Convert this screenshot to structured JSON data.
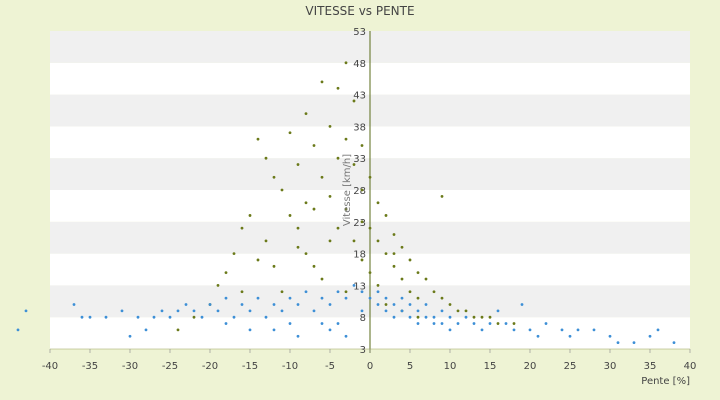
{
  "chart_data": {
    "type": "scatter",
    "title": "VITESSE vs PENTE",
    "xlabel": "Pente [%]",
    "ylabel": "Vitesse [km/h]",
    "xlim": [
      -40,
      40
    ],
    "ylim": [
      3,
      53
    ],
    "x_ticks": [
      -40,
      -35,
      -30,
      -25,
      -20,
      -15,
      -10,
      -5,
      0,
      5,
      10,
      15,
      20,
      25,
      30,
      35,
      40
    ],
    "y_ticks": [
      3,
      8,
      13,
      18,
      23,
      28,
      33,
      38,
      43,
      48,
      53
    ],
    "grid": "horizontal bands",
    "colors": {
      "background": "#eef3d4",
      "band_light": "#ffffff",
      "band_dark": "#f0f0f0",
      "axis": "#5a6b1a"
    },
    "series": [
      {
        "color": "#6b7a1a",
        "points": [
          [
            -18,
            15
          ],
          [
            -17,
            18
          ],
          [
            -16,
            22
          ],
          [
            -15,
            24
          ],
          [
            -14,
            36
          ],
          [
            -13,
            33
          ],
          [
            -12,
            30
          ],
          [
            -11,
            28
          ],
          [
            -10,
            37
          ],
          [
            -10,
            24
          ],
          [
            -9,
            22
          ],
          [
            -9,
            32
          ],
          [
            -8,
            40
          ],
          [
            -8,
            26
          ],
          [
            -7,
            25
          ],
          [
            -7,
            35
          ],
          [
            -6,
            30
          ],
          [
            -6,
            45
          ],
          [
            -5,
            27
          ],
          [
            -5,
            38
          ],
          [
            -4,
            44
          ],
          [
            -4,
            33
          ],
          [
            -4,
            22
          ],
          [
            -3,
            48
          ],
          [
            -3,
            36
          ],
          [
            -3,
            25
          ],
          [
            -2,
            42
          ],
          [
            -2,
            32
          ],
          [
            -2,
            20
          ],
          [
            -1,
            35
          ],
          [
            -1,
            28
          ],
          [
            -1,
            17
          ],
          [
            0,
            30
          ],
          [
            0,
            22
          ],
          [
            0,
            15
          ],
          [
            1,
            26
          ],
          [
            1,
            20
          ],
          [
            1,
            13
          ],
          [
            2,
            24
          ],
          [
            2,
            18
          ],
          [
            3,
            21
          ],
          [
            3,
            16
          ],
          [
            4,
            19
          ],
          [
            4,
            14
          ],
          [
            5,
            17
          ],
          [
            5,
            12
          ],
          [
            6,
            15
          ],
          [
            6,
            11
          ],
          [
            7,
            14
          ],
          [
            8,
            12
          ],
          [
            9,
            11
          ],
          [
            10,
            10
          ],
          [
            11,
            9
          ],
          [
            12,
            9
          ],
          [
            13,
            8
          ],
          [
            14,
            8
          ],
          [
            15,
            8
          ],
          [
            16,
            7
          ],
          [
            18,
            7
          ],
          [
            9,
            27
          ],
          [
            -20,
            10
          ],
          [
            -22,
            8
          ],
          [
            -24,
            6
          ],
          [
            -16,
            12
          ],
          [
            -12,
            16
          ],
          [
            -8,
            18
          ],
          [
            -6,
            14
          ],
          [
            -13,
            20
          ],
          [
            -19,
            13
          ],
          [
            -11,
            12
          ],
          [
            -7,
            16
          ],
          [
            -3,
            12
          ],
          [
            2,
            10
          ],
          [
            4,
            9
          ],
          [
            6,
            8
          ],
          [
            -9,
            19
          ],
          [
            -5,
            20
          ],
          [
            -1,
            23
          ],
          [
            3,
            18
          ],
          [
            -14,
            17
          ]
        ]
      },
      {
        "color": "#3d8fd6",
        "points": [
          [
            -44,
            6
          ],
          [
            -43,
            9
          ],
          [
            -37,
            10
          ],
          [
            -36,
            8
          ],
          [
            -35,
            8
          ],
          [
            -33,
            8
          ],
          [
            -31,
            9
          ],
          [
            -30,
            5
          ],
          [
            -29,
            8
          ],
          [
            -27,
            8
          ],
          [
            -26,
            9
          ],
          [
            -25,
            8
          ],
          [
            -24,
            9
          ],
          [
            -23,
            10
          ],
          [
            -22,
            9
          ],
          [
            -21,
            8
          ],
          [
            -20,
            10
          ],
          [
            -19,
            9
          ],
          [
            -18,
            11
          ],
          [
            -17,
            8
          ],
          [
            -16,
            10
          ],
          [
            -15,
            9
          ],
          [
            -14,
            11
          ],
          [
            -13,
            8
          ],
          [
            -12,
            10
          ],
          [
            -11,
            9
          ],
          [
            -10,
            11
          ],
          [
            -9,
            10
          ],
          [
            -8,
            12
          ],
          [
            -7,
            9
          ],
          [
            -6,
            11
          ],
          [
            -5,
            10
          ],
          [
            -4,
            12
          ],
          [
            -3,
            11
          ],
          [
            -2,
            13
          ],
          [
            -1,
            12
          ],
          [
            -1,
            9
          ],
          [
            0,
            11
          ],
          [
            1,
            12
          ],
          [
            1,
            10
          ],
          [
            2,
            11
          ],
          [
            2,
            9
          ],
          [
            3,
            10
          ],
          [
            3,
            8
          ],
          [
            4,
            9
          ],
          [
            4,
            11
          ],
          [
            5,
            8
          ],
          [
            5,
            10
          ],
          [
            6,
            9
          ],
          [
            6,
            7
          ],
          [
            7,
            8
          ],
          [
            7,
            10
          ],
          [
            8,
            8
          ],
          [
            8,
            7
          ],
          [
            9,
            9
          ],
          [
            9,
            7
          ],
          [
            10,
            8
          ],
          [
            10,
            6
          ],
          [
            11,
            7
          ],
          [
            12,
            8
          ],
          [
            13,
            7
          ],
          [
            14,
            6
          ],
          [
            15,
            7
          ],
          [
            16,
            9
          ],
          [
            17,
            7
          ],
          [
            18,
            6
          ],
          [
            19,
            10
          ],
          [
            20,
            6
          ],
          [
            21,
            5
          ],
          [
            22,
            7
          ],
          [
            24,
            6
          ],
          [
            25,
            5
          ],
          [
            26,
            6
          ],
          [
            28,
            6
          ],
          [
            30,
            5
          ],
          [
            31,
            4
          ],
          [
            33,
            4
          ],
          [
            35,
            5
          ],
          [
            36,
            6
          ],
          [
            38,
            4
          ],
          [
            -28,
            6
          ],
          [
            -15,
            6
          ],
          [
            -9,
            5
          ],
          [
            -5,
            6
          ],
          [
            -3,
            5
          ],
          [
            -6,
            7
          ],
          [
            -12,
            6
          ],
          [
            -18,
            7
          ],
          [
            -10,
            7
          ],
          [
            -4,
            7
          ]
        ]
      }
    ]
  }
}
